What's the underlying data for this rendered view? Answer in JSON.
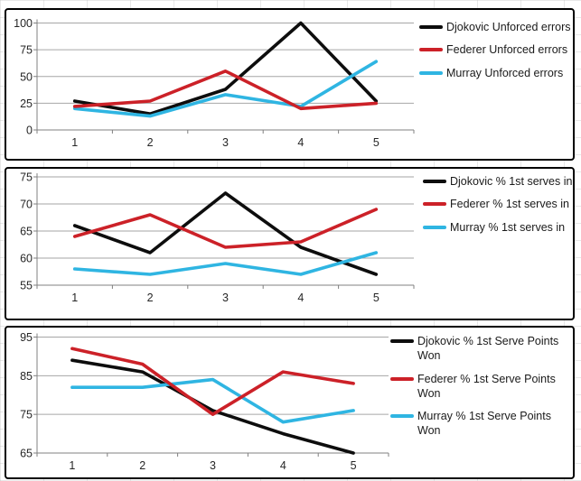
{
  "app": {
    "description": "Three stacked line charts comparing tennis statistics for Djokovic, Federer and Murray across 5 matches"
  },
  "colors": {
    "djokovic": "#0d0d0d",
    "federer": "#cc2128",
    "murray": "#2fb5e2",
    "gridline": "#a6a6a6",
    "axis_line": "#808080",
    "tick_label": "#262626",
    "panel_border": "#000000",
    "panel_background": "#ffffff"
  },
  "chart_data": [
    {
      "type": "line",
      "title": "",
      "categories": [
        "1",
        "2",
        "3",
        "4",
        "5"
      ],
      "series": [
        {
          "name": "Djokovic Unforced errors",
          "color_key": "djokovic",
          "values": [
            27,
            15,
            38,
            100,
            27
          ]
        },
        {
          "name": "Federer Unforced errors",
          "color_key": "federer",
          "values": [
            22,
            27,
            55,
            20,
            25
          ]
        },
        {
          "name": "Murray Unforced errors",
          "color_key": "murray",
          "values": [
            20,
            13,
            33,
            22,
            64
          ]
        }
      ],
      "ylim": [
        0,
        100
      ],
      "ytick_step": 25,
      "yticks": [
        "0",
        "25",
        "50",
        "75",
        "100"
      ],
      "grid": true,
      "legend_position": "right"
    },
    {
      "type": "line",
      "title": "",
      "categories": [
        "1",
        "2",
        "3",
        "4",
        "5"
      ],
      "series": [
        {
          "name": "Djokovic % 1st serves in",
          "color_key": "djokovic",
          "values": [
            66,
            61,
            72,
            62,
            57
          ]
        },
        {
          "name": "Federer % 1st serves in",
          "color_key": "federer",
          "values": [
            64,
            68,
            62,
            63,
            69
          ]
        },
        {
          "name": "Murray % 1st serves in",
          "color_key": "murray",
          "values": [
            58,
            57,
            59,
            57,
            61
          ]
        }
      ],
      "ylim": [
        55,
        75
      ],
      "ytick_step": 5,
      "yticks": [
        "55",
        "60",
        "65",
        "70",
        "75"
      ],
      "grid": true,
      "legend_position": "right"
    },
    {
      "type": "line",
      "title": "",
      "categories": [
        "1",
        "2",
        "3",
        "4",
        "5"
      ],
      "series": [
        {
          "name": "Djokovic % 1st Serve Points Won",
          "color_key": "djokovic",
          "values": [
            89,
            86,
            76,
            70,
            65
          ]
        },
        {
          "name": "Federer % 1st Serve Points Won",
          "color_key": "federer",
          "values": [
            92,
            88,
            75,
            86,
            83
          ]
        },
        {
          "name": "Murray % 1st Serve Points Won",
          "color_key": "murray",
          "values": [
            82,
            82,
            84,
            73,
            76
          ]
        }
      ],
      "ylim": [
        65,
        95
      ],
      "ytick_step": 10,
      "yticks": [
        "65",
        "75",
        "85",
        "95"
      ],
      "grid": true,
      "legend_position": "right"
    }
  ]
}
